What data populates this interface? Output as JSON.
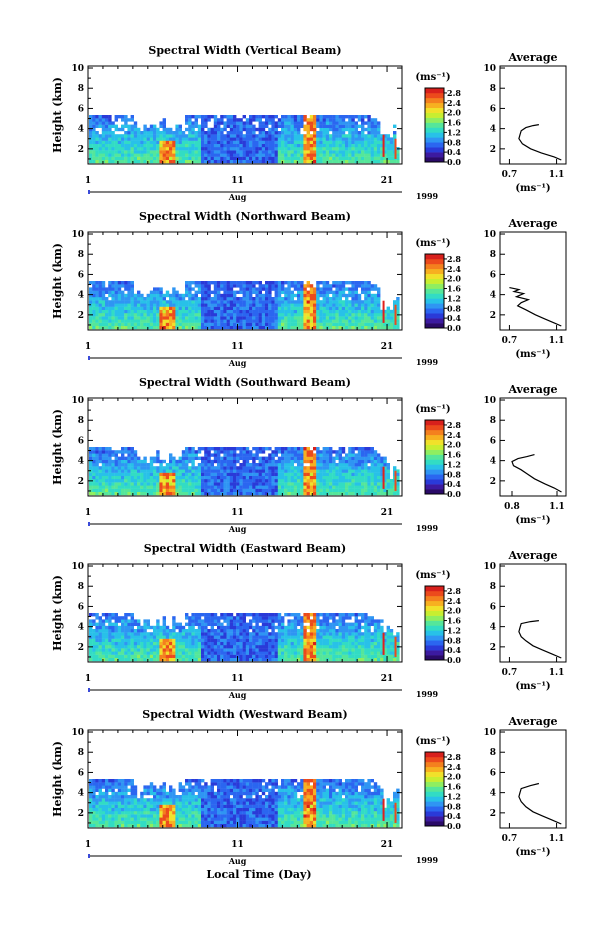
{
  "chart_data": {
    "type": "heatmap",
    "xlabel": "Local Time (Day)",
    "month_label": "Aug",
    "year_label": "1999",
    "x_ticks": [
      "1",
      "11",
      "21"
    ],
    "x_range": [
      1,
      22
    ],
    "y_ticks": [
      "2",
      "4",
      "6",
      "8",
      "10"
    ],
    "ylabel": "Height (km)",
    "ylim": [
      0.5,
      10.2
    ],
    "unit_label": "(ms⁻¹)",
    "colorbar": {
      "ticks": [
        "0.0",
        "0.4",
        "0.8",
        "1.2",
        "1.6",
        "2.0",
        "2.4",
        "2.8"
      ],
      "range": [
        0.0,
        3.0
      ],
      "colors": [
        "#2a0a68",
        "#3c1aa0",
        "#2a3ad8",
        "#2b66f0",
        "#2f95f3",
        "#28c1e8",
        "#32dcc4",
        "#55e69a",
        "#8fee60",
        "#c8ee30",
        "#f1e12a",
        "#f7b020",
        "#f4801e",
        "#ec4a1c",
        "#d8201c"
      ]
    },
    "profile": {
      "title": "Average",
      "xlabel": "(ms⁻¹)",
      "ylim": [
        0.5,
        10.2
      ]
    },
    "panels": [
      {
        "title": "Spectral Width (Vertical Beam)",
        "profile_xticks": [
          "0.7",
          "1.1"
        ],
        "profile_xlim": [
          0.62,
          1.18
        ],
        "profile": [
          [
            0.95,
            4.4
          ],
          [
            0.9,
            4.3
          ],
          [
            0.84,
            4.1
          ],
          [
            0.8,
            3.8
          ],
          [
            0.79,
            3.4
          ],
          [
            0.78,
            3.0
          ],
          [
            0.81,
            2.5
          ],
          [
            0.88,
            2.0
          ],
          [
            0.97,
            1.6
          ],
          [
            1.08,
            1.2
          ],
          [
            1.14,
            0.9
          ]
        ],
        "seed": 11
      },
      {
        "title": "Spectral Width (Northward Beam)",
        "profile_xticks": [
          "0.7",
          "1.1"
        ],
        "profile_xlim": [
          0.62,
          1.18
        ],
        "profile": [
          [
            0.7,
            4.7
          ],
          [
            0.78,
            4.5
          ],
          [
            0.74,
            4.3
          ],
          [
            0.82,
            4.1
          ],
          [
            0.76,
            3.8
          ],
          [
            0.86,
            3.5
          ],
          [
            0.8,
            3.2
          ],
          [
            0.77,
            2.9
          ],
          [
            0.84,
            2.5
          ],
          [
            0.92,
            2.0
          ],
          [
            1.0,
            1.6
          ],
          [
            1.08,
            1.2
          ],
          [
            1.14,
            0.9
          ]
        ],
        "seed": 23
      },
      {
        "title": "Spectral Width (Southward Beam)",
        "profile_xticks": [
          "0.8",
          "1.1"
        ],
        "profile_xlim": [
          0.72,
          1.16
        ],
        "profile": [
          [
            0.95,
            4.6
          ],
          [
            0.9,
            4.4
          ],
          [
            0.84,
            4.2
          ],
          [
            0.8,
            3.9
          ],
          [
            0.81,
            3.5
          ],
          [
            0.86,
            3.1
          ],
          [
            0.9,
            2.7
          ],
          [
            0.95,
            2.2
          ],
          [
            1.02,
            1.7
          ],
          [
            1.08,
            1.3
          ],
          [
            1.13,
            0.9
          ]
        ],
        "seed": 37
      },
      {
        "title": "Spectral Width (Eastward Beam)",
        "profile_xticks": [
          "0.7",
          "1.1"
        ],
        "profile_xlim": [
          0.62,
          1.18
        ],
        "profile": [
          [
            0.95,
            4.6
          ],
          [
            0.88,
            4.5
          ],
          [
            0.8,
            4.3
          ],
          [
            0.79,
            3.9
          ],
          [
            0.78,
            3.5
          ],
          [
            0.8,
            3.0
          ],
          [
            0.84,
            2.6
          ],
          [
            0.9,
            2.1
          ],
          [
            0.98,
            1.7
          ],
          [
            1.06,
            1.3
          ],
          [
            1.14,
            0.9
          ]
        ],
        "seed": 49
      },
      {
        "title": "Spectral Width (Westward Beam)",
        "profile_xticks": [
          "0.7",
          "1.1"
        ],
        "profile_xlim": [
          0.62,
          1.18
        ],
        "profile": [
          [
            0.95,
            4.9
          ],
          [
            0.88,
            4.7
          ],
          [
            0.8,
            4.4
          ],
          [
            0.79,
            4.0
          ],
          [
            0.78,
            3.6
          ],
          [
            0.8,
            3.1
          ],
          [
            0.84,
            2.6
          ],
          [
            0.9,
            2.1
          ],
          [
            0.98,
            1.7
          ],
          [
            1.06,
            1.3
          ],
          [
            1.14,
            0.9
          ]
        ],
        "seed": 61
      }
    ]
  }
}
